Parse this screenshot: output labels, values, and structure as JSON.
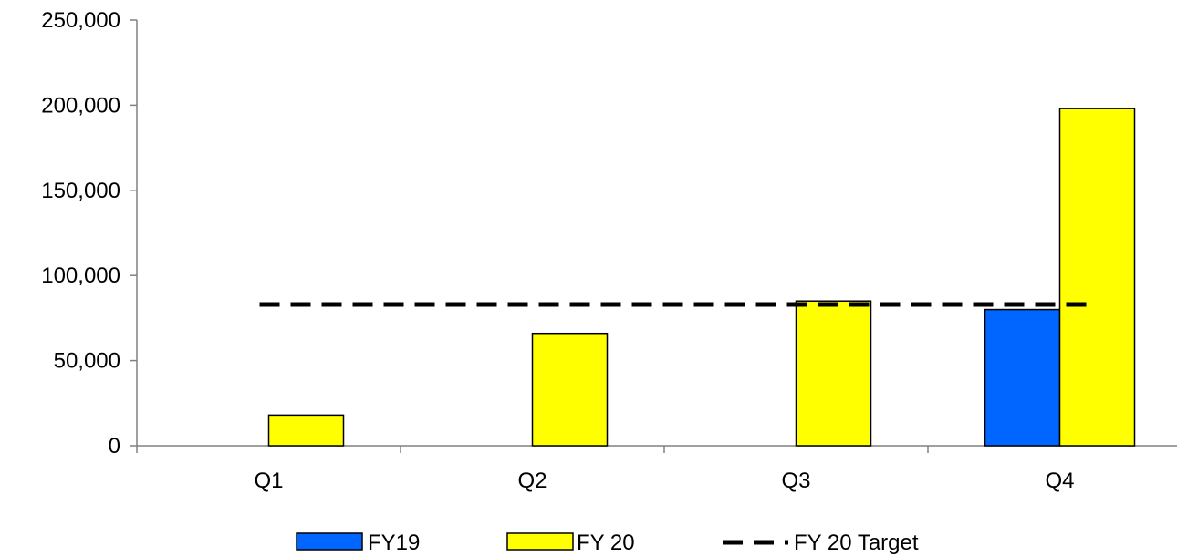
{
  "chart_data": {
    "type": "bar",
    "title": "",
    "xlabel": "",
    "ylabel": "",
    "categories": [
      "Q1",
      "Q2",
      "Q3",
      "Q4"
    ],
    "ylim": [
      0,
      250000
    ],
    "yticks": [
      0,
      50000,
      100000,
      150000,
      200000,
      250000
    ],
    "ytick_labels": [
      "0",
      "50,000",
      "100,000",
      "150,000",
      "200,000",
      "250,000"
    ],
    "grid": false,
    "legend_position": "bottom",
    "series": [
      {
        "name": "FY19",
        "kind": "bar",
        "color": "#0066FF",
        "values": [
          0,
          0,
          0,
          80000
        ]
      },
      {
        "name": "FY 20",
        "kind": "bar",
        "color": "#FFFF00",
        "values": [
          18000,
          66000,
          85000,
          198000
        ]
      },
      {
        "name": "FY 20 Target",
        "kind": "line",
        "style": "dashed",
        "color": "#000000",
        "values": [
          83000,
          83000,
          83000,
          83000
        ]
      }
    ]
  }
}
